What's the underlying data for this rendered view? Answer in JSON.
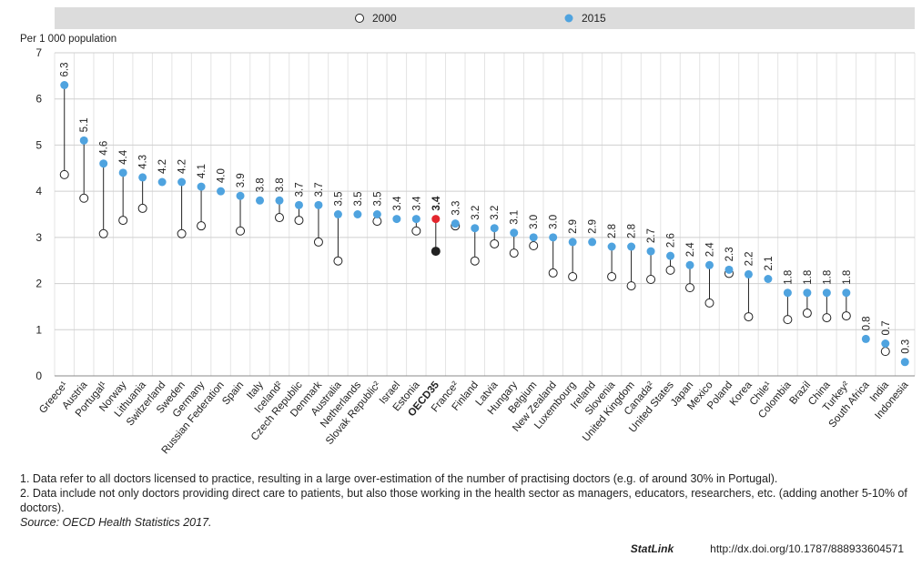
{
  "chart_data": {
    "type": "dumbbell",
    "y_label": "Per 1 000 population",
    "categories": [
      "Greece¹",
      "Austria",
      "Portugal¹",
      "Norway",
      "Lithuania",
      "Switzerland",
      "Sweden",
      "Germany",
      "Russian Federation",
      "Spain",
      "Italy",
      "Iceland²",
      "Czech Republic",
      "Denmark",
      "Australia",
      "Netherlands",
      "Slovak Republic²",
      "Israel",
      "Estonia",
      "OECD35",
      "France²",
      "Finland",
      "Latvia",
      "Hungary",
      "Belgium",
      "New Zealand",
      "Luxembourg",
      "Ireland",
      "Slovenia",
      "United Kingdom",
      "Canada²",
      "United States",
      "Japan",
      "Mexico",
      "Poland",
      "Korea",
      "Chile¹",
      "Colombia",
      "Brazil",
      "China",
      "Turkey²",
      "South Africa",
      "India",
      "Indonesia"
    ],
    "series": [
      {
        "name": "2000",
        "color": "#ffffff",
        "stroke": "#222222",
        "values": [
          4.36,
          3.85,
          3.08,
          3.37,
          3.63,
          null,
          3.08,
          3.25,
          null,
          3.14,
          null,
          3.43,
          3.37,
          2.9,
          2.49,
          null,
          3.35,
          null,
          3.14,
          2.7,
          3.25,
          2.49,
          2.86,
          2.66,
          2.82,
          2.23,
          2.15,
          null,
          2.15,
          1.95,
          2.09,
          2.29,
          1.91,
          1.58,
          2.22,
          1.28,
          null,
          1.22,
          1.36,
          1.26,
          1.3,
          null,
          0.53,
          null
        ]
      },
      {
        "name": "2015",
        "color": "#4fa3df",
        "values": [
          6.3,
          5.1,
          4.6,
          4.4,
          4.3,
          4.2,
          4.2,
          4.1,
          4.0,
          3.9,
          3.8,
          3.8,
          3.7,
          3.7,
          3.5,
          3.5,
          3.5,
          3.4,
          3.4,
          3.4,
          3.3,
          3.2,
          3.2,
          3.1,
          3.0,
          3.0,
          2.9,
          2.9,
          2.8,
          2.8,
          2.7,
          2.6,
          2.4,
          2.4,
          2.3,
          2.2,
          2.1,
          1.8,
          1.8,
          1.8,
          1.8,
          0.8,
          0.7,
          0.3
        ],
        "value_labels": [
          "6.3",
          "5.1",
          "4.6",
          "4.4",
          "4.3",
          "4.2",
          "4.2",
          "4.1",
          "4.0",
          "3.9",
          "3.8",
          "3.8",
          "3.7",
          "3.7",
          "3.5",
          "3.5",
          "3.5",
          "3.4",
          "3.4",
          "3.4",
          "3.3",
          "3.2",
          "3.2",
          "3.1",
          "3.0",
          "3.0",
          "2.9",
          "2.9",
          "2.8",
          "2.8",
          "2.7",
          "2.6",
          "2.4",
          "2.4",
          "2.3",
          "2.2",
          "2.1",
          "1.8",
          "1.8",
          "1.8",
          "1.8",
          "0.8",
          "0.7",
          "0.3"
        ]
      }
    ],
    "highlight": {
      "category": "OECD35",
      "colors": [
        "#222222",
        "#e3262e"
      ]
    },
    "ylim": [
      0,
      7
    ],
    "yticks": [
      0,
      1,
      2,
      3,
      4,
      5,
      6,
      7
    ],
    "grid": true,
    "legend": "top"
  },
  "notes": [
    "1. Data refer to all doctors licensed to practice, resulting in a large over-estimation of the number of practising doctors (e.g. of around 30% in Portugal).",
    "2. Data include not only doctors providing direct care to patients, but also those working in the health sector as managers, educators, researchers, etc. (adding another 5-10% of doctors)."
  ],
  "source": "Source: OECD Health Statistics 2017.",
  "statlink": {
    "label": "StatLink",
    "url": "http://dx.doi.org/10.1787/888933604571"
  }
}
